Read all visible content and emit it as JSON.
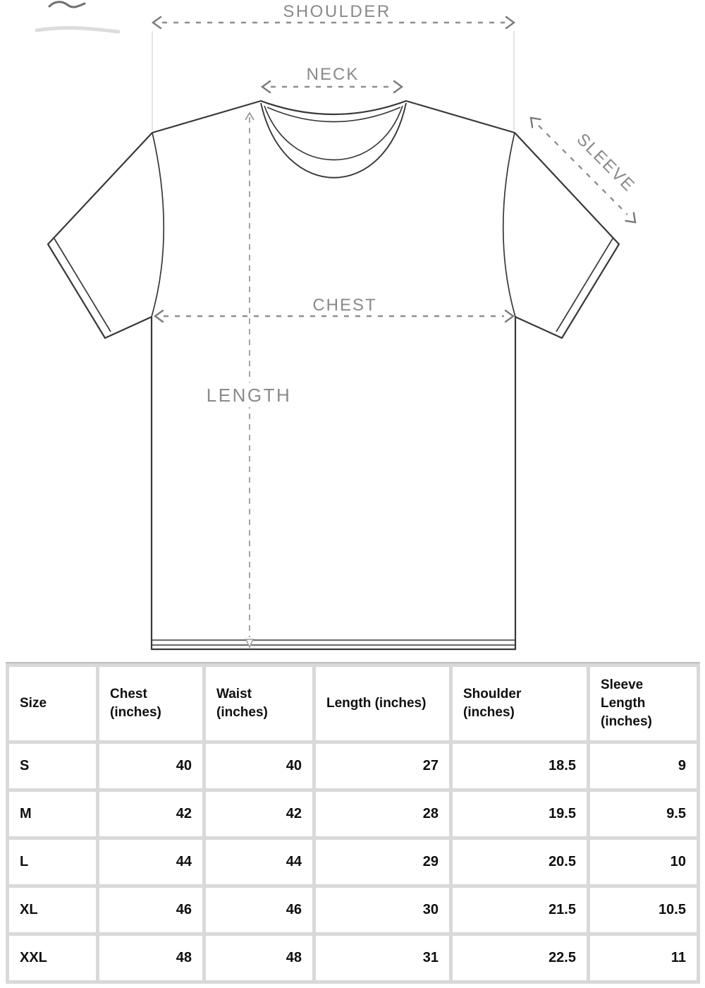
{
  "diagram": {
    "labels": {
      "shoulder": "SHOULDER",
      "neck": "NECK",
      "sleeve": "SLEEVE",
      "chest": "CHEST",
      "length": "LENGTH"
    },
    "colors": {
      "outline": "#383838",
      "annotation": "#8f8f8f",
      "extension_line": "#d6d6d6"
    }
  },
  "size_chart": {
    "columns": [
      "Size",
      "Chest\n(inches)",
      "Waist\n(inches)",
      "Length (inches)",
      "Shoulder\n(inches)",
      "Sleeve\nLength\n(inches)"
    ],
    "rows": [
      [
        "S",
        "40",
        "40",
        "27",
        "18.5",
        "9"
      ],
      [
        "M",
        "42",
        "42",
        "28",
        "19.5",
        "9.5"
      ],
      [
        "L",
        "44",
        "44",
        "29",
        "20.5",
        "10"
      ],
      [
        "XL",
        "46",
        "46",
        "30",
        "21.5",
        "10.5"
      ],
      [
        "XXL",
        "48",
        "48",
        "31",
        "22.5",
        "11"
      ]
    ],
    "colors": {
      "grid": "#d9d9d9",
      "cell": "#ffffff",
      "text": "#0f0f0f"
    }
  },
  "chart_data": {
    "type": "table",
    "columns": [
      "Size",
      "Chest (inches)",
      "Waist (inches)",
      "Length (inches)",
      "Shoulder (inches)",
      "Sleeve Length (inches)"
    ],
    "rows": [
      [
        "S",
        40,
        40,
        27,
        18.5,
        9
      ],
      [
        "M",
        42,
        42,
        28,
        19.5,
        9.5
      ],
      [
        "L",
        44,
        44,
        29,
        20.5,
        10
      ],
      [
        "XL",
        46,
        46,
        30,
        21.5,
        10.5
      ],
      [
        "XXL",
        48,
        48,
        31,
        22.5,
        11
      ]
    ]
  }
}
